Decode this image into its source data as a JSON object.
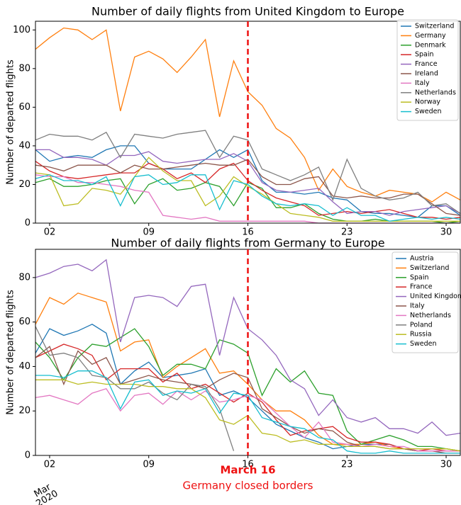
{
  "chart_data": [
    {
      "type": "line",
      "title": "Number of daily flights from United Kingdom to Europe",
      "ylabel": "Number of departed flights",
      "x": [
        "2020-03-01",
        "2020-03-02",
        "2020-03-03",
        "2020-03-04",
        "2020-03-05",
        "2020-03-06",
        "2020-03-07",
        "2020-03-08",
        "2020-03-09",
        "2020-03-10",
        "2020-03-11",
        "2020-03-12",
        "2020-03-13",
        "2020-03-14",
        "2020-03-15",
        "2020-03-16",
        "2020-03-17",
        "2020-03-18",
        "2020-03-19",
        "2020-03-20",
        "2020-03-21",
        "2020-03-22",
        "2020-03-23",
        "2020-03-24",
        "2020-03-25",
        "2020-03-26",
        "2020-03-27",
        "2020-03-28",
        "2020-03-29",
        "2020-03-30",
        "2020-03-31"
      ],
      "xlim": [
        "2020-03-01",
        "2020-03-31"
      ],
      "xticks": [
        {
          "value": "2020-03-02",
          "label": "02"
        },
        {
          "value": "2020-03-09",
          "label": "09"
        },
        {
          "value": "2020-03-16",
          "label": "16"
        },
        {
          "value": "2020-03-23",
          "label": "23"
        },
        {
          "value": "2020-03-30",
          "label": "30"
        }
      ],
      "ylim": [
        0,
        104.5
      ],
      "yticks": [
        0,
        20,
        40,
        60,
        80,
        100
      ],
      "vline": {
        "x": "2020-03-16",
        "color": "#ee1111"
      },
      "legend": "upper right",
      "series": [
        {
          "name": "Switzerland",
          "color": "#1f77b4",
          "values": [
            38,
            32,
            34,
            35,
            34,
            38,
            40,
            40,
            31,
            28,
            28,
            28,
            33,
            38,
            34,
            38,
            22,
            16,
            16,
            15,
            16,
            13,
            12,
            6,
            5,
            5,
            4,
            3,
            9,
            9,
            4
          ]
        },
        {
          "name": "Germany",
          "color": "#ff7f0e",
          "values": [
            90,
            96,
            101,
            100,
            95,
            100,
            58,
            86,
            89,
            85,
            78,
            86,
            95,
            55,
            84,
            68,
            61,
            49,
            44,
            34,
            17,
            28,
            19,
            16,
            14,
            17,
            16,
            15,
            11,
            16,
            12
          ]
        },
        {
          "name": "Denmark",
          "color": "#2ca02c",
          "values": [
            21,
            23,
            19,
            19,
            20,
            22,
            23,
            10,
            20,
            23,
            17,
            18,
            21,
            19,
            9,
            21,
            18,
            8,
            8,
            10,
            5,
            2,
            1,
            1,
            2,
            1,
            1,
            1,
            1,
            0,
            1
          ]
        },
        {
          "name": "Spain",
          "color": "#d62728",
          "values": [
            32,
            27,
            24,
            23,
            24,
            25,
            26,
            26,
            31,
            28,
            23,
            26,
            21,
            28,
            31,
            22,
            17,
            13,
            11,
            9,
            4,
            5,
            6,
            5,
            6,
            7,
            5,
            3,
            3,
            2,
            3
          ]
        },
        {
          "name": "France",
          "color": "#9467bd",
          "values": [
            38,
            38,
            34,
            34,
            33,
            30,
            35,
            35,
            37,
            32,
            31,
            32,
            33,
            33,
            36,
            32,
            21,
            17,
            16,
            17,
            18,
            11,
            5,
            6,
            6,
            4,
            6,
            7,
            8,
            9,
            5
          ]
        },
        {
          "name": "Ireland",
          "color": "#8c564b",
          "values": [
            30,
            29,
            27,
            30,
            30,
            30,
            26,
            30,
            28,
            28,
            29,
            30,
            31,
            30,
            30,
            33,
            24,
            20,
            20,
            23,
            24,
            14,
            13,
            14,
            13,
            13,
            15,
            15,
            10,
            5,
            4
          ]
        },
        {
          "name": "Italy",
          "color": "#e377c2",
          "values": [
            25,
            24,
            24,
            21,
            21,
            20,
            19,
            17,
            16,
            4,
            3,
            2,
            3,
            1,
            1,
            1,
            1,
            1,
            1,
            1,
            0,
            0,
            0,
            0,
            0,
            0,
            0,
            0,
            0,
            0,
            0
          ]
        },
        {
          "name": "Netherlands",
          "color": "#7f7f7f",
          "values": [
            43,
            46,
            45,
            45,
            43,
            47,
            34,
            46,
            45,
            44,
            46,
            47,
            48,
            34,
            45,
            43,
            28,
            25,
            22,
            25,
            29,
            12,
            33,
            18,
            14,
            12,
            13,
            16,
            9,
            10,
            5
          ]
        },
        {
          "name": "Norway",
          "color": "#bcbd22",
          "values": [
            26,
            25,
            9,
            10,
            18,
            17,
            15,
            24,
            34,
            27,
            22,
            22,
            9,
            14,
            24,
            19,
            15,
            10,
            5,
            4,
            3,
            1,
            1,
            1,
            1,
            1,
            1,
            1,
            1,
            1,
            1
          ]
        },
        {
          "name": "Sweden",
          "color": "#17becf",
          "values": [
            23,
            25,
            22,
            22,
            20,
            24,
            9,
            24,
            25,
            20,
            21,
            25,
            25,
            7,
            22,
            20,
            14,
            10,
            9,
            10,
            9,
            4,
            8,
            4,
            4,
            1,
            2,
            3,
            2,
            3,
            2
          ]
        }
      ]
    },
    {
      "type": "line",
      "title": "Number of daily flights from Germany to Europe",
      "ylabel": "Number of departed flights",
      "x": [
        "2020-03-01",
        "2020-03-02",
        "2020-03-03",
        "2020-03-04",
        "2020-03-05",
        "2020-03-06",
        "2020-03-07",
        "2020-03-08",
        "2020-03-09",
        "2020-03-10",
        "2020-03-11",
        "2020-03-12",
        "2020-03-13",
        "2020-03-14",
        "2020-03-15",
        "2020-03-16",
        "2020-03-17",
        "2020-03-18",
        "2020-03-19",
        "2020-03-20",
        "2020-03-21",
        "2020-03-22",
        "2020-03-23",
        "2020-03-24",
        "2020-03-25",
        "2020-03-26",
        "2020-03-27",
        "2020-03-28",
        "2020-03-29",
        "2020-03-30",
        "2020-03-31"
      ],
      "xlim": [
        "2020-03-01",
        "2020-03-31"
      ],
      "xticks": [
        {
          "value": "2020-03-02",
          "label": "02"
        },
        {
          "value": "2020-03-09",
          "label": "09"
        },
        {
          "value": "2020-03-16",
          "label": "16"
        },
        {
          "value": "2020-03-23",
          "label": "23"
        },
        {
          "value": "2020-03-30",
          "label": "30"
        }
      ],
      "date_offset_label": [
        "Mar",
        "2020"
      ],
      "ylim": [
        0,
        92.7
      ],
      "yticks": [
        0,
        20,
        40,
        60,
        80
      ],
      "vline": {
        "x": "2020-03-16",
        "color": "#ee1111"
      },
      "annotation": {
        "x": "2020-03-16",
        "lines": [
          "March 16",
          "Germany closed borders"
        ],
        "color": "#ee1111"
      },
      "legend": "upper right",
      "series": [
        {
          "name": "Austria",
          "color": "#1f77b4",
          "values": [
            46,
            57,
            54,
            56,
            59,
            55,
            32,
            38,
            42,
            35,
            36,
            37,
            39,
            27,
            29,
            26,
            20,
            14,
            11,
            8,
            6,
            3,
            4,
            5,
            5,
            5,
            3,
            2,
            2,
            2,
            2
          ]
        },
        {
          "name": "Switzerland",
          "color": "#ff7f0e",
          "values": [
            59,
            71,
            68,
            73,
            71,
            69,
            47,
            51,
            52,
            35,
            40,
            44,
            48,
            37,
            38,
            32,
            25,
            20,
            20,
            16,
            9,
            5,
            5,
            5,
            6,
            4,
            3,
            3,
            3,
            3,
            2
          ]
        },
        {
          "name": "Spain",
          "color": "#2ca02c",
          "values": [
            51,
            44,
            34,
            44,
            50,
            49,
            53,
            57,
            49,
            36,
            41,
            41,
            39,
            52,
            50,
            46,
            27,
            39,
            33,
            38,
            28,
            27,
            11,
            5,
            7,
            9,
            7,
            4,
            4,
            3,
            2
          ]
        },
        {
          "name": "France",
          "color": "#d62728",
          "values": [
            44,
            47,
            50,
            48,
            45,
            34,
            39,
            39,
            39,
            33,
            37,
            30,
            32,
            28,
            24,
            28,
            24,
            16,
            9,
            11,
            12,
            13,
            8,
            6,
            6,
            5,
            3,
            2,
            3,
            2,
            2
          ]
        },
        {
          "name": "United Kingdom",
          "color": "#9467bd",
          "values": [
            80,
            82,
            85,
            86,
            83,
            88,
            51,
            71,
            72,
            71,
            67,
            76,
            77,
            45,
            71,
            57,
            52,
            45,
            34,
            30,
            18,
            25,
            17,
            15,
            17,
            12,
            12,
            10,
            15,
            9,
            10
          ]
        },
        {
          "name": "Italy",
          "color": "#8c564b",
          "values": [
            44,
            49,
            32,
            47,
            41,
            44,
            32,
            34,
            36,
            34,
            33,
            32,
            30,
            34,
            37,
            35,
            21,
            17,
            13,
            10,
            12,
            11,
            6,
            4,
            4,
            3,
            3,
            2,
            2,
            1,
            1
          ]
        },
        {
          "name": "Netherlands",
          "color": "#e377c2",
          "values": [
            26,
            27,
            25,
            23,
            28,
            30,
            20,
            27,
            28,
            23,
            29,
            25,
            29,
            24,
            25,
            27,
            25,
            19,
            13,
            8,
            15,
            6,
            5,
            4,
            5,
            4,
            4,
            2,
            2,
            2,
            2
          ]
        },
        {
          "name": "Poland",
          "color": "#7f7f7f",
          "values": [
            58,
            45,
            46,
            44,
            36,
            35,
            30,
            30,
            33,
            28,
            25,
            32,
            31,
            21,
            2,
            null,
            null,
            null,
            null,
            null,
            null,
            null,
            null,
            null,
            null,
            null,
            null,
            null,
            null,
            null,
            null
          ]
        },
        {
          "name": "Russia",
          "color": "#bcbd22",
          "values": [
            34,
            34,
            34,
            32,
            33,
            32,
            32,
            32,
            31,
            31,
            30,
            30,
            26,
            16,
            14,
            18,
            10,
            9,
            6,
            7,
            5,
            5,
            4,
            4,
            4,
            3,
            3,
            3,
            3,
            3,
            2
          ]
        },
        {
          "name": "Sweden",
          "color": "#17becf",
          "values": [
            36,
            36,
            35,
            38,
            38,
            35,
            21,
            33,
            34,
            27,
            29,
            28,
            30,
            19,
            28,
            27,
            17,
            15,
            13,
            12,
            8,
            7,
            2,
            1,
            1,
            2,
            1,
            1,
            1,
            1,
            1
          ]
        }
      ]
    }
  ]
}
